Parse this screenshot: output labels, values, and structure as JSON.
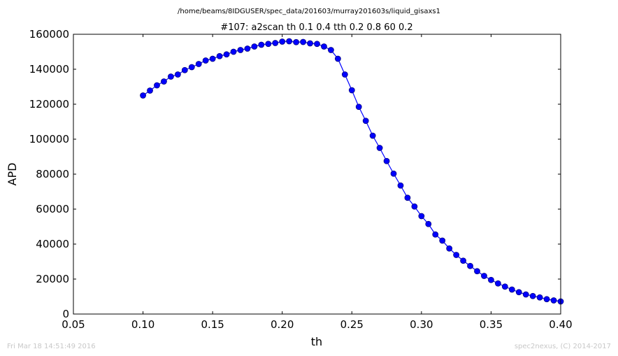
{
  "header": {
    "file_path": "/home/beams/8IDGUSER/spec_data/201603/murray201603s/liquid_gisaxs1"
  },
  "footer": {
    "timestamp": "Fri Mar 18 14:51:49 2016",
    "credit": "spec2nexus, (C) 2014-2017"
  },
  "colors": {
    "series": "#0000ff",
    "marker_fill": "#0000ff",
    "marker_edge": "#000080",
    "axes": "#000000",
    "background": "#ffffff"
  },
  "chart_data": {
    "type": "line",
    "title": "#107: a2scan  th 0.1 0.4  tth 0.2 0.8  60 0.2",
    "xlabel": "th",
    "ylabel": "APD",
    "xlim": [
      0.05,
      0.4
    ],
    "ylim": [
      0,
      160000
    ],
    "x_ticks": [
      0.05,
      0.1,
      0.15,
      0.2,
      0.25,
      0.3,
      0.35,
      0.4
    ],
    "x_tick_labels": [
      "0.05",
      "0.10",
      "0.15",
      "0.20",
      "0.25",
      "0.30",
      "0.35",
      "0.40"
    ],
    "y_ticks": [
      0,
      20000,
      40000,
      60000,
      80000,
      100000,
      120000,
      140000,
      160000
    ],
    "y_tick_labels": [
      "0",
      "20000",
      "40000",
      "60000",
      "80000",
      "100000",
      "120000",
      "140000",
      "160000"
    ],
    "grid": false,
    "markers": "circle",
    "series": [
      {
        "x": [
          0.1,
          0.105,
          0.11,
          0.115,
          0.12,
          0.125,
          0.13,
          0.135,
          0.14,
          0.145,
          0.15,
          0.155,
          0.16,
          0.165,
          0.17,
          0.175,
          0.18,
          0.185,
          0.19,
          0.195,
          0.2,
          0.205,
          0.21,
          0.215,
          0.22,
          0.225,
          0.23,
          0.235,
          0.24,
          0.245,
          0.25,
          0.255,
          0.26,
          0.265,
          0.27,
          0.275,
          0.28,
          0.285,
          0.29,
          0.295,
          0.3,
          0.305,
          0.31,
          0.315,
          0.32,
          0.325,
          0.33,
          0.335,
          0.34,
          0.345,
          0.35,
          0.355,
          0.36,
          0.365,
          0.37,
          0.375,
          0.38,
          0.385,
          0.39,
          0.395,
          0.4
        ],
        "y": [
          125000,
          127800,
          130800,
          133000,
          135800,
          137000,
          139500,
          141200,
          143000,
          145000,
          146000,
          147500,
          148500,
          150000,
          151000,
          151800,
          153000,
          154000,
          154500,
          155000,
          155800,
          156000,
          155500,
          155600,
          154800,
          154500,
          153000,
          151000,
          146000,
          137000,
          128000,
          118500,
          110500,
          102000,
          95000,
          87500,
          80300,
          73500,
          66500,
          61500,
          56000,
          51500,
          45500,
          42000,
          37500,
          33800,
          30500,
          27500,
          24500,
          21800,
          19500,
          17500,
          15700,
          14000,
          12500,
          11200,
          10300,
          9500,
          8500,
          7800,
          7200
        ]
      }
    ]
  }
}
